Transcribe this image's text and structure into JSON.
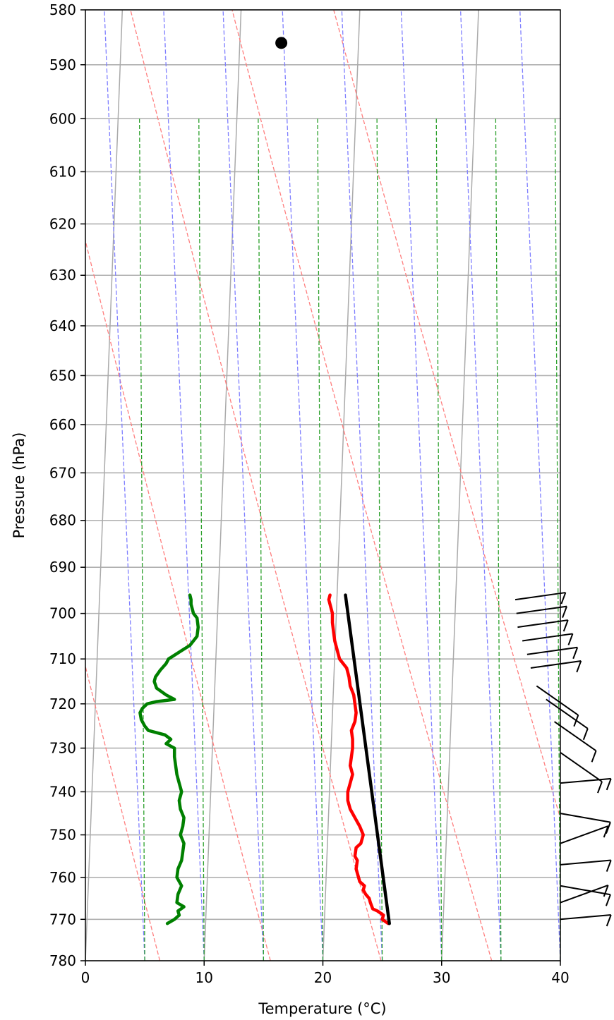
{
  "chart_data": {
    "type": "line",
    "title": "",
    "xlabel": "Temperature (°C)",
    "ylabel": "Pressure (hPa)",
    "xlim": [
      0,
      40
    ],
    "ylim": [
      780,
      580
    ],
    "x_ticks": [
      0,
      10,
      20,
      30,
      40
    ],
    "y_ticks": [
      580,
      590,
      600,
      610,
      620,
      630,
      640,
      650,
      660,
      670,
      680,
      690,
      700,
      710,
      720,
      730,
      740,
      750,
      760,
      770,
      780
    ],
    "y_scale": "log",
    "grid": "horizontal",
    "skew": 10.5,
    "reference_lines": {
      "dry_adiabats_color": "#ff7f7f",
      "moist_adiabats_color": "#7f7fff",
      "mixing_ratio_color": "#2ca02c",
      "skewed_isotherms_color": "#aaaaaa"
    },
    "series": [
      {
        "role": "temperature",
        "color": "#ff0000",
        "points": [
          [
            25.5,
            771
          ],
          [
            25.0,
            770
          ],
          [
            25.1,
            769
          ],
          [
            24.6,
            768
          ],
          [
            24.2,
            767.5
          ],
          [
            24.0,
            766
          ],
          [
            23.9,
            765
          ],
          [
            23.6,
            764
          ],
          [
            23.4,
            763
          ],
          [
            23.5,
            762
          ],
          [
            23.1,
            761
          ],
          [
            23.0,
            760
          ],
          [
            22.8,
            758
          ],
          [
            22.9,
            756
          ],
          [
            22.7,
            755
          ],
          [
            22.8,
            753
          ],
          [
            23.2,
            752
          ],
          [
            23.4,
            750
          ],
          [
            23.1,
            748
          ],
          [
            22.7,
            746
          ],
          [
            22.3,
            744
          ],
          [
            22.1,
            742
          ],
          [
            22.1,
            740
          ],
          [
            22.3,
            738
          ],
          [
            22.5,
            736
          ],
          [
            22.3,
            734
          ],
          [
            22.4,
            732
          ],
          [
            22.5,
            730
          ],
          [
            22.5,
            728
          ],
          [
            22.4,
            726
          ],
          [
            22.7,
            724
          ],
          [
            22.8,
            722
          ],
          [
            22.7,
            720
          ],
          [
            22.6,
            718
          ],
          [
            22.3,
            716
          ],
          [
            22.2,
            714
          ],
          [
            22.0,
            712
          ],
          [
            21.4,
            710
          ],
          [
            21.2,
            708
          ],
          [
            21.0,
            706
          ],
          [
            20.9,
            704
          ],
          [
            20.8,
            702
          ],
          [
            20.8,
            700
          ],
          [
            20.6,
            698
          ],
          [
            20.5,
            697
          ],
          [
            20.6,
            696
          ]
        ]
      },
      {
        "role": "dewpoint",
        "color": "#008000",
        "points": [
          [
            6.9,
            771
          ],
          [
            7.5,
            770
          ],
          [
            7.9,
            769
          ],
          [
            7.8,
            768
          ],
          [
            8.3,
            767
          ],
          [
            7.7,
            766
          ],
          [
            7.8,
            764
          ],
          [
            8.1,
            762
          ],
          [
            7.7,
            760
          ],
          [
            7.8,
            758
          ],
          [
            8.1,
            756
          ],
          [
            8.2,
            754
          ],
          [
            8.3,
            752
          ],
          [
            8.0,
            750
          ],
          [
            8.2,
            748
          ],
          [
            8.3,
            746
          ],
          [
            8.0,
            744
          ],
          [
            7.9,
            742
          ],
          [
            8.1,
            740
          ],
          [
            7.9,
            738
          ],
          [
            7.7,
            736
          ],
          [
            7.6,
            734
          ],
          [
            7.5,
            732
          ],
          [
            7.5,
            730
          ],
          [
            6.8,
            729
          ],
          [
            7.2,
            728
          ],
          [
            6.7,
            727
          ],
          [
            5.3,
            726
          ],
          [
            5.0,
            725
          ],
          [
            4.7,
            723.5
          ],
          [
            4.6,
            722
          ],
          [
            4.8,
            721
          ],
          [
            5.2,
            720
          ],
          [
            6.0,
            719.5
          ],
          [
            7.5,
            719
          ],
          [
            6.8,
            718
          ],
          [
            6.0,
            716.5
          ],
          [
            5.8,
            715
          ],
          [
            5.9,
            714
          ],
          [
            6.3,
            712.5
          ],
          [
            6.8,
            711
          ],
          [
            7.0,
            710
          ],
          [
            7.9,
            708.5
          ],
          [
            8.8,
            707
          ],
          [
            9.4,
            705
          ],
          [
            9.5,
            703
          ],
          [
            9.4,
            701
          ],
          [
            9.1,
            700
          ],
          [
            8.9,
            698
          ],
          [
            8.9,
            697
          ],
          [
            8.8,
            696
          ]
        ]
      },
      {
        "role": "parcel",
        "color": "#000000",
        "points": [
          [
            25.6,
            771
          ],
          [
            21.9,
            696
          ]
        ]
      }
    ],
    "marker": {
      "color": "#000000",
      "point": [
        16.5,
        586
      ]
    }
  }
}
